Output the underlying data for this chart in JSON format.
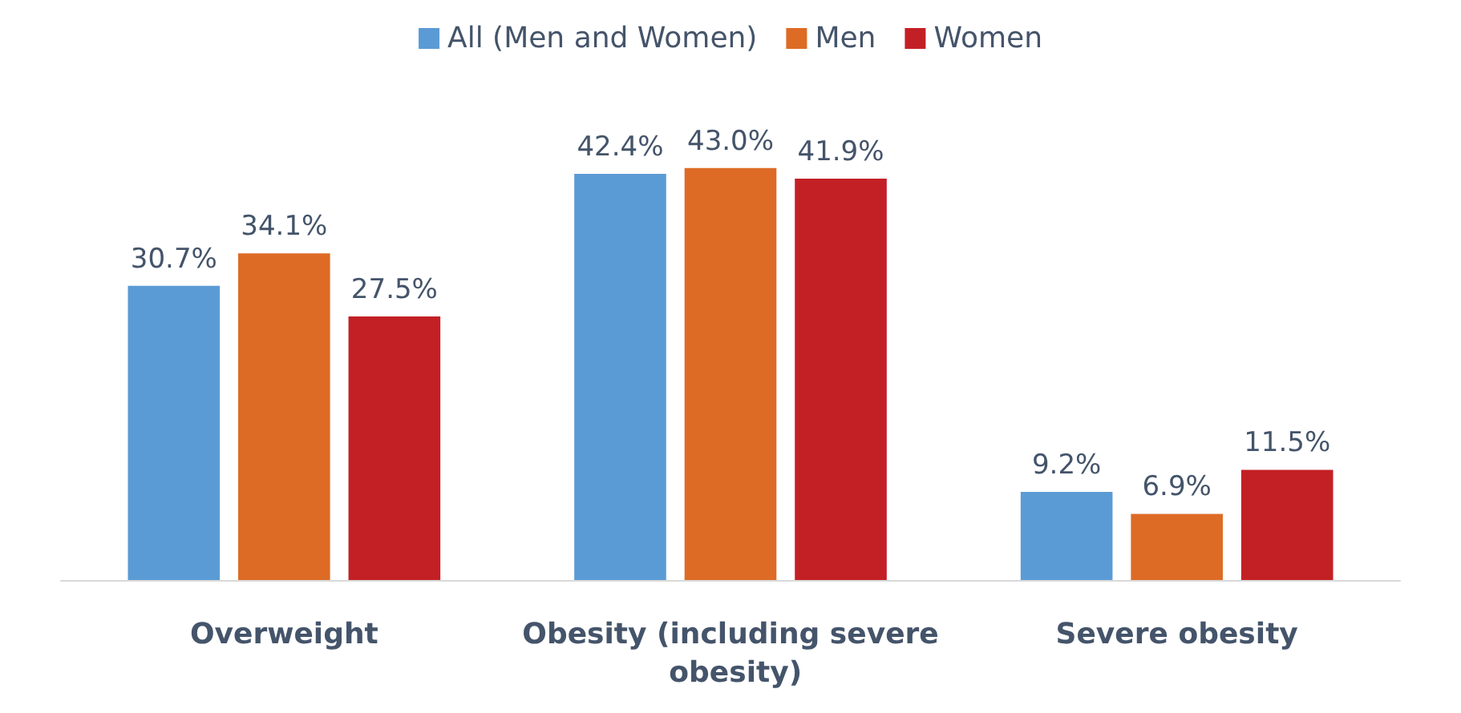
{
  "chart_data": {
    "type": "bar",
    "categories": [
      "Overweight",
      "Obesity (including severe obesity)",
      "Severe obesity"
    ],
    "series": [
      {
        "name": "All (Men and Women)",
        "color": "#5b9bd5",
        "values": [
          30.7,
          42.4,
          9.2
        ],
        "value_labels": [
          "30.7%",
          "42.4%",
          "9.2%"
        ]
      },
      {
        "name": "Men",
        "color": "#dd6b26",
        "values": [
          34.1,
          43.0,
          6.9
        ],
        "value_labels": [
          "34.1%",
          "43.0%",
          "6.9%"
        ]
      },
      {
        "name": "Women",
        "color": "#c32026",
        "values": [
          27.5,
          41.9,
          11.5
        ],
        "value_labels": [
          "27.5%",
          "41.9%",
          "11.5%"
        ]
      }
    ],
    "legend": "top",
    "grid": false,
    "tick_labels": "x"
  }
}
